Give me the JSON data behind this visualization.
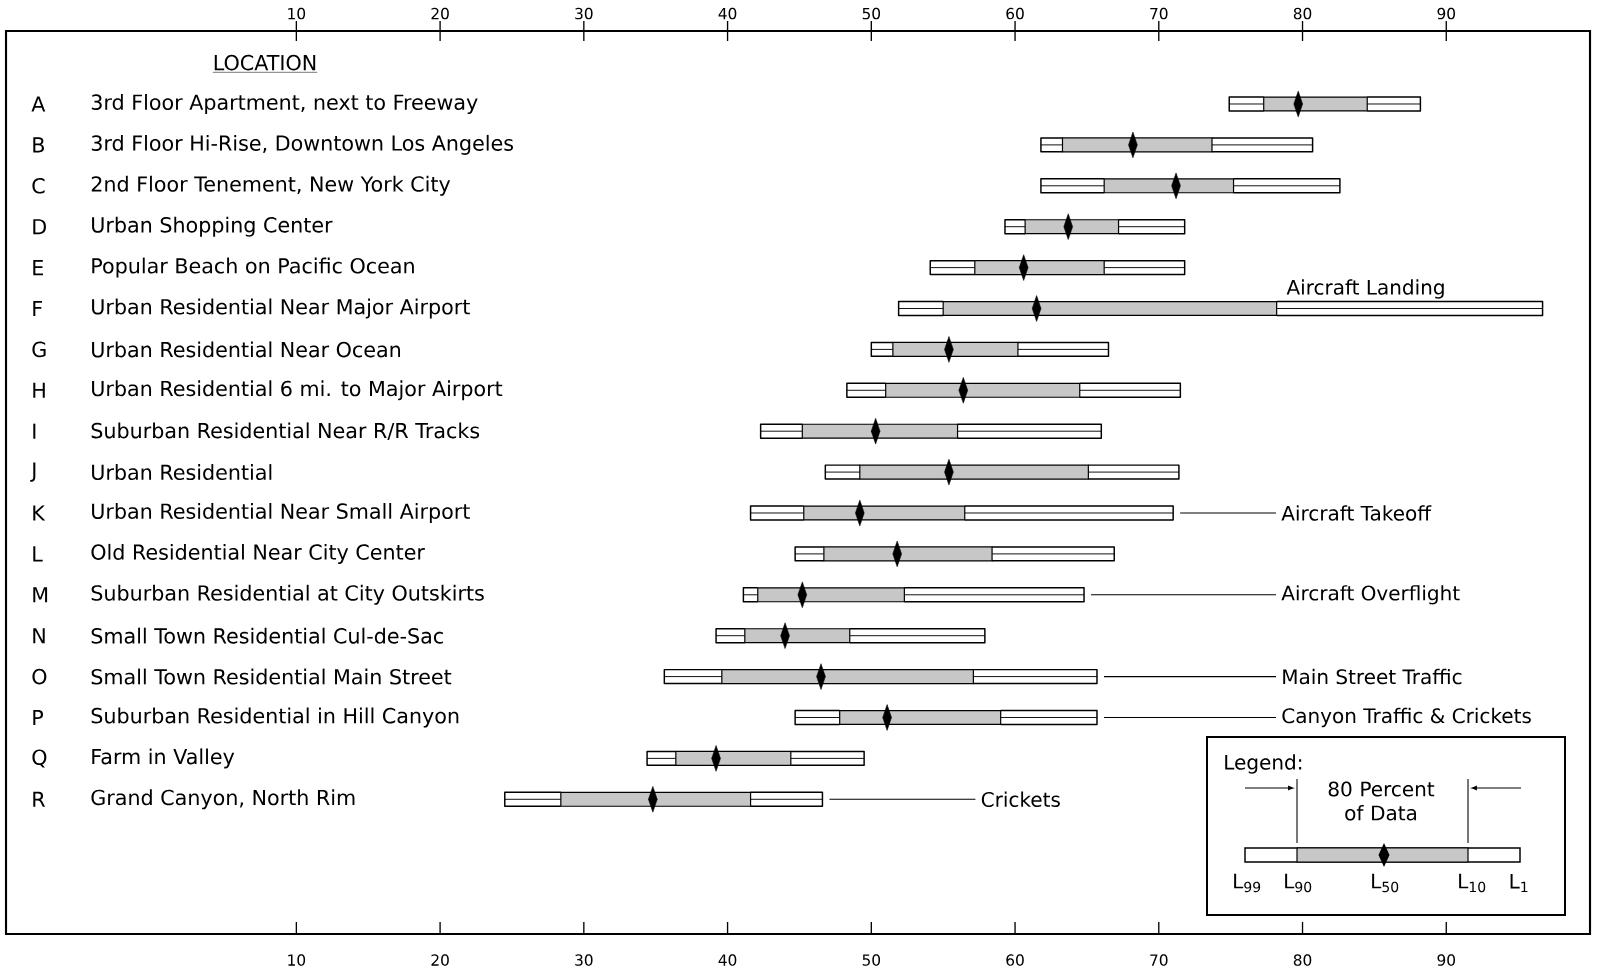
{
  "chart_data": {
    "type": "box",
    "orientation": "horizontal",
    "ylabel": "LOCATION",
    "categories": [
      "3rd Floor Apartment, next to Freeway",
      "3rd Floor Hi-Rise, Downtown Los Angeles",
      "2nd Floor Tenement, New York City",
      "Urban Shopping Center",
      "Popular Beach on Pacific Ocean",
      "Urban Residential Near Major Airport",
      "Urban Residential Near Ocean",
      "Urban Residential 6 mi. to Major Airport",
      "Suburban Residential Near R/R Tracks",
      "Urban Residential",
      "Urban Residential Near Small Airport",
      "Old Residential Near City Center",
      "Suburban Residential at City Outskirts",
      "Small Town Residential Cul-de-Sac",
      "Small Town Residential Main Street",
      "Suburban Residential in Hill Canyon",
      "Farm in Valley",
      "Grand Canyon, North Rim"
    ],
    "boxes": [
      {
        "low": 74.9,
        "q1": 77.3,
        "median": 79.7,
        "q3": 84.5,
        "high": 88.2
      },
      {
        "low": 61.8,
        "q1": 63.3,
        "median": 68.2,
        "q3": 73.7,
        "high": 80.7
      },
      {
        "low": 61.8,
        "q1": 66.2,
        "median": 71.2,
        "q3": 75.2,
        "high": 82.6
      },
      {
        "low": 59.3,
        "q1": 60.7,
        "median": 63.7,
        "q3": 67.2,
        "high": 71.8
      },
      {
        "low": 54.1,
        "q1": 57.2,
        "median": 60.6,
        "q3": 66.2,
        "high": 71.8
      },
      {
        "low": 51.9,
        "q1": 55.0,
        "median": 61.5,
        "q3": 78.2,
        "high": 96.7
      },
      {
        "low": 50.0,
        "q1": 51.5,
        "median": 55.4,
        "q3": 60.2,
        "high": 66.5
      },
      {
        "low": 48.3,
        "q1": 51.0,
        "median": 56.4,
        "q3": 64.5,
        "high": 71.5
      },
      {
        "low": 42.3,
        "q1": 45.2,
        "median": 50.3,
        "q3": 56.0,
        "high": 66.0
      },
      {
        "low": 46.8,
        "q1": 49.2,
        "median": 55.4,
        "q3": 65.1,
        "high": 71.4
      },
      {
        "low": 41.6,
        "q1": 45.3,
        "median": 49.2,
        "q3": 56.5,
        "high": 71.0
      },
      {
        "low": 44.7,
        "q1": 46.7,
        "median": 51.8,
        "q3": 58.4,
        "high": 66.9
      },
      {
        "low": 41.1,
        "q1": 42.1,
        "median": 45.2,
        "q3": 52.3,
        "high": 64.8
      },
      {
        "low": 39.2,
        "q1": 41.2,
        "median": 44.0,
        "q3": 48.5,
        "high": 57.9
      },
      {
        "low": 35.6,
        "q1": 39.6,
        "median": 46.5,
        "q3": 57.1,
        "high": 65.7
      },
      {
        "low": 44.7,
        "q1": 47.8,
        "median": 51.1,
        "q3": 59.0,
        "high": 65.7
      },
      {
        "low": 34.4,
        "q1": 36.4,
        "median": 39.2,
        "q3": 44.4,
        "high": 49.5
      },
      {
        "low": 24.5,
        "q1": 28.4,
        "median": 34.8,
        "q3": 41.6,
        "high": 46.6
      }
    ],
    "color": "#000000",
    "marker": "diamond",
    "xlim": [
      -10.2,
      100
    ],
    "xticks": [
      10,
      20,
      30,
      40,
      50,
      60,
      70,
      80,
      90
    ],
    "x2lim": [
      -10.2,
      100
    ],
    "x2ticks": [
      10,
      20,
      30,
      40,
      50,
      60,
      70,
      80,
      90
    ],
    "annotations": [
      "A",
      "B",
      "C",
      "D",
      "E",
      "F",
      "G",
      "H",
      "I",
      "J",
      "K",
      "L",
      "M",
      "N",
      "O",
      "P",
      "Q",
      "R",
      "Aircraft Landing",
      "Aircraft Takeoff",
      "Aircraft Overflight",
      "Main Street Traffic",
      "Canyon Traffic & Crickets",
      "Crickets",
      "Legend:",
      "80 Percent of Data",
      "L$_{99}$",
      "L$_{90}$",
      "L$_{50}$",
      "L$_{10}$",
      "L$_{1}$"
    ]
  }
}
